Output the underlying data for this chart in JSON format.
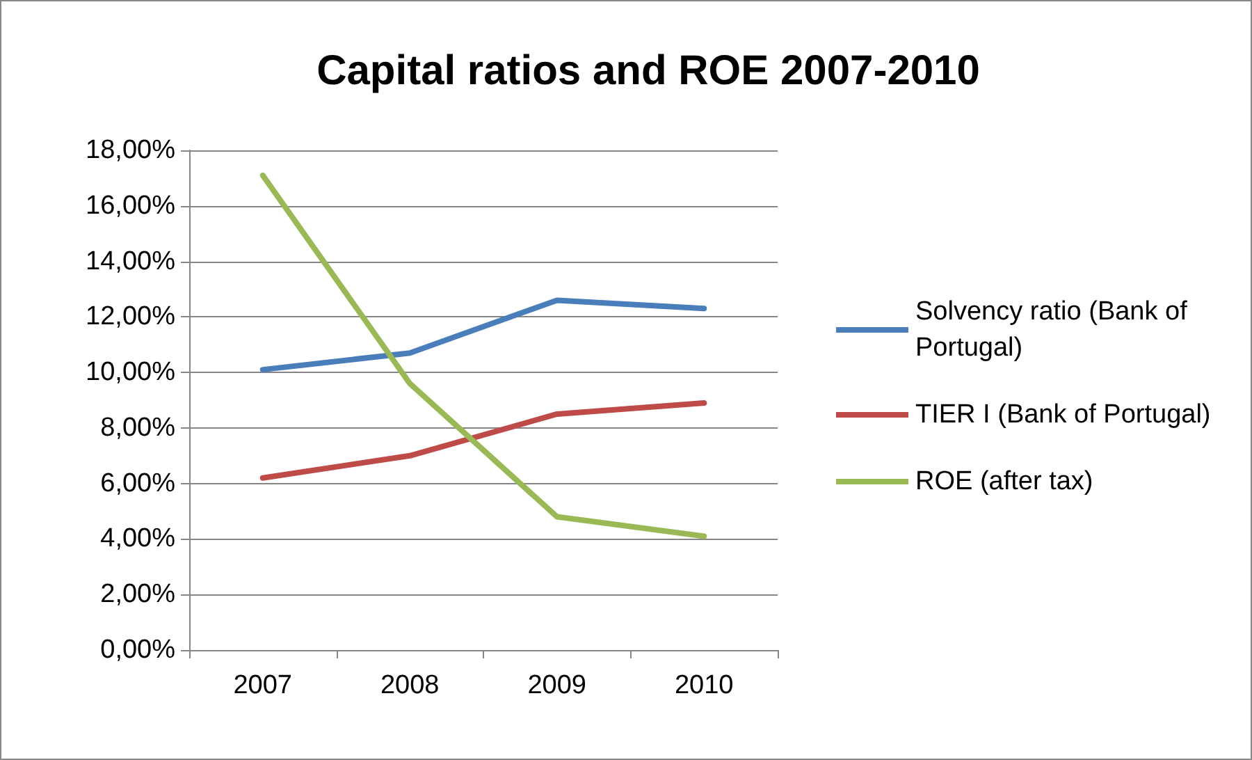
{
  "chart_data": {
    "type": "line",
    "title": "Capital ratios and ROE 2007-2010",
    "categories": [
      "2007",
      "2008",
      "2009",
      "2010"
    ],
    "series": [
      {
        "name": "Solvency ratio (Bank of Portugal)",
        "color": "#4a7ebb",
        "values": [
          10.1,
          10.7,
          12.6,
          12.3
        ]
      },
      {
        "name": "TIER I (Bank of Portugal)",
        "color": "#be4b48",
        "values": [
          6.2,
          7.0,
          8.5,
          8.9
        ]
      },
      {
        "name": "ROE (after tax)",
        "color": "#98b954",
        "values": [
          17.1,
          9.6,
          4.8,
          4.1
        ]
      }
    ],
    "ylim": [
      0,
      18
    ],
    "yticks": [
      {
        "value": 0,
        "label": "0,00%"
      },
      {
        "value": 2,
        "label": "2,00%"
      },
      {
        "value": 4,
        "label": "4,00%"
      },
      {
        "value": 6,
        "label": "6,00%"
      },
      {
        "value": 8,
        "label": "8,00%"
      },
      {
        "value": 10,
        "label": "10,00%"
      },
      {
        "value": 12,
        "label": "12,00%"
      },
      {
        "value": 14,
        "label": "14,00%"
      },
      {
        "value": 16,
        "label": "16,00%"
      },
      {
        "value": 18,
        "label": "18,00%"
      }
    ],
    "grid": "y",
    "legend": "right",
    "marker": "none",
    "line_style": "solid"
  }
}
